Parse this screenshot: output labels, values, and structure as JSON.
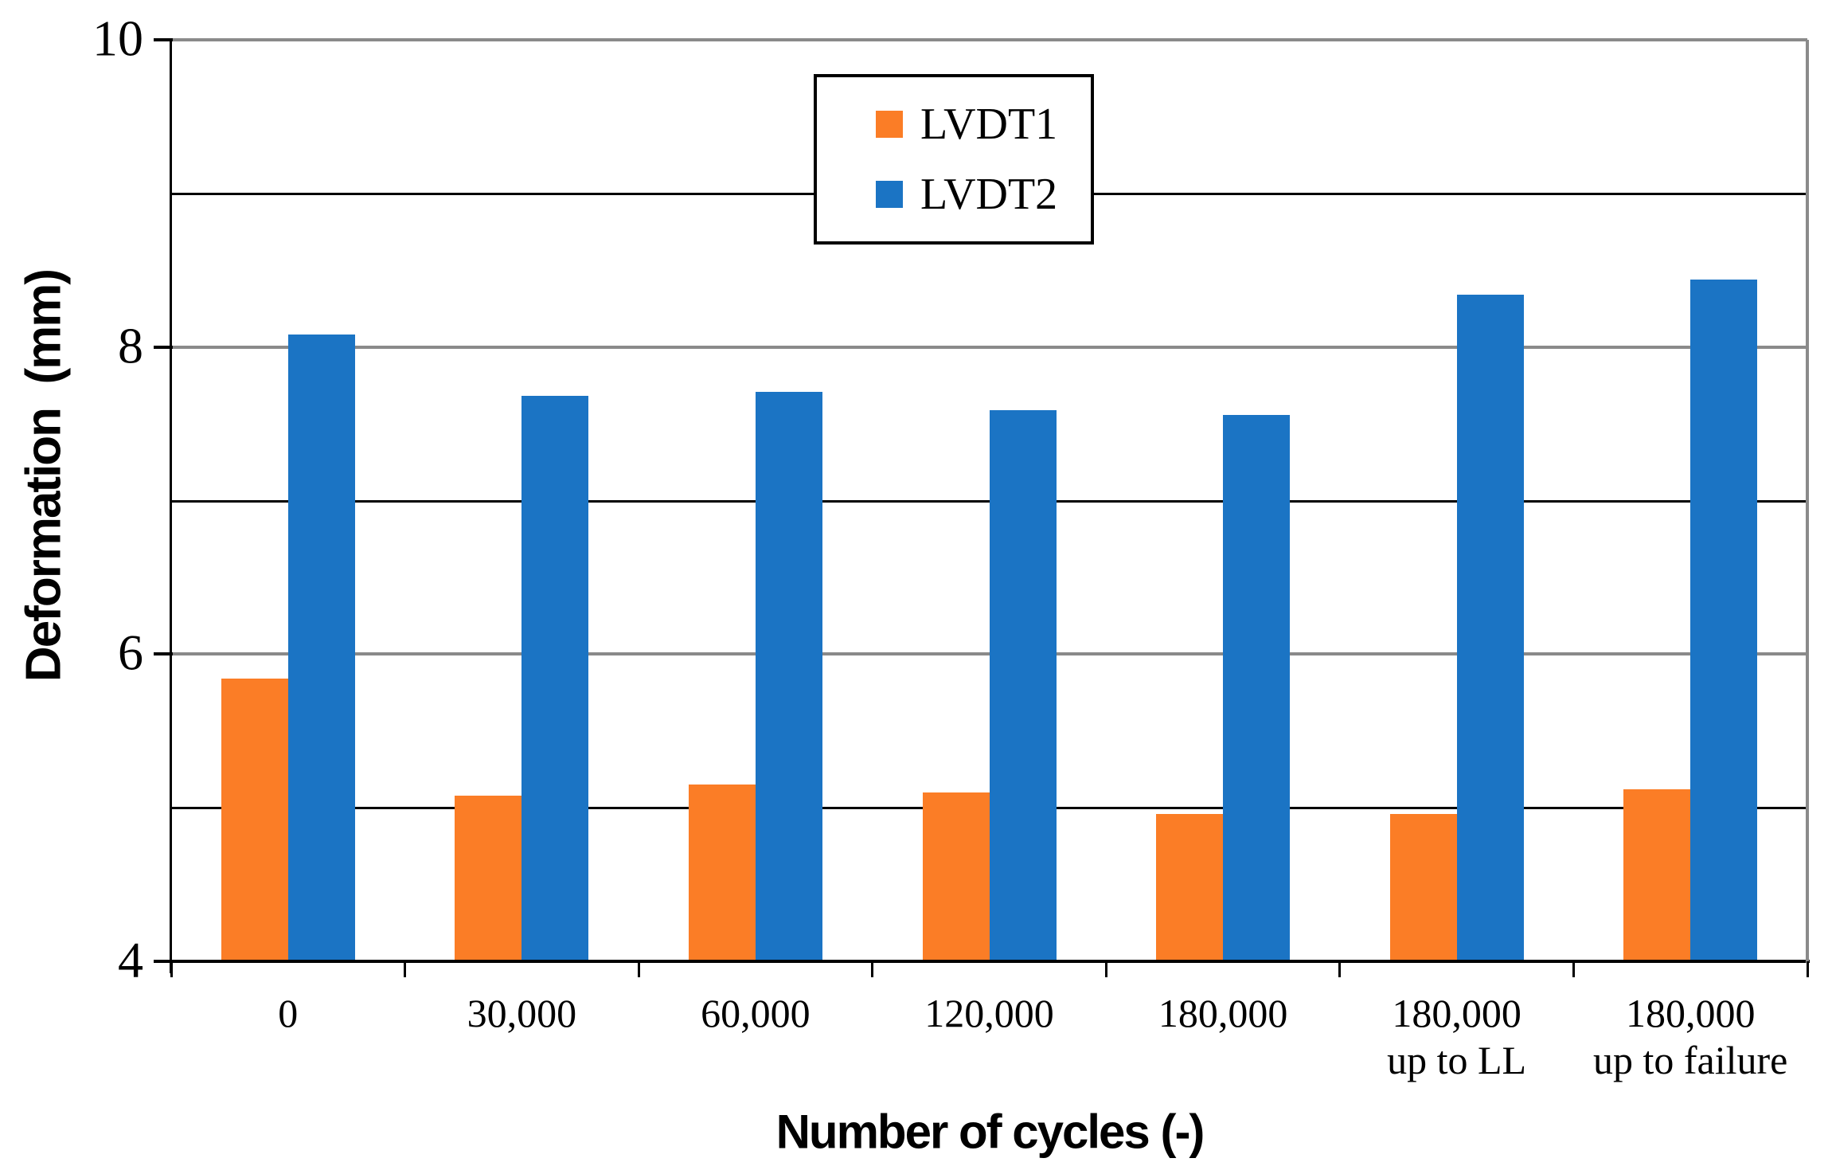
{
  "chart_data": {
    "type": "bar",
    "title": "",
    "xlabel": "Number of cycles (-)",
    "ylabel": "Deformation  (mm)",
    "categories": [
      "0",
      "30,000",
      "60,000",
      "120,000",
      "180,000",
      "180,000\nup to LL",
      "180,000\nup to failure"
    ],
    "series": [
      {
        "name": "LVDT1",
        "color": "#FB7D26",
        "values": [
          5.84,
          5.08,
          5.15,
          5.1,
          4.96,
          4.96,
          5.12
        ]
      },
      {
        "name": "LVDT2",
        "color": "#1B74C4",
        "values": [
          8.08,
          7.68,
          7.71,
          7.59,
          7.56,
          8.34,
          8.44
        ]
      }
    ],
    "ylim": [
      4,
      10
    ],
    "y_major_ticks": [
      4,
      6,
      8,
      10
    ],
    "y_gridline_step": 1,
    "legend_position": "top-center",
    "grid": true
  },
  "styles": {
    "major_gridline_color": "#8A8A8A",
    "minor_gridline_color": "#000000",
    "axis_color": "#000000",
    "plot_border_color": "#8A8A8A",
    "background_color": "#ffffff"
  }
}
